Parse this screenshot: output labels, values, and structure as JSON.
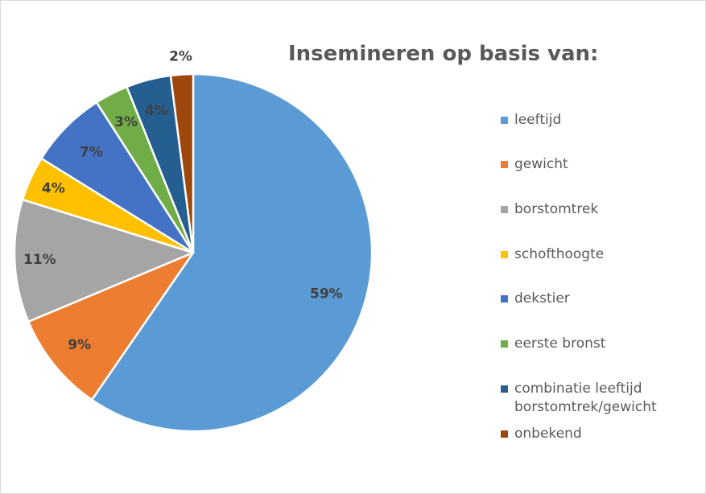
{
  "chart_data": {
    "type": "pie",
    "title": "Insemineren op basis van:",
    "categories": [
      "leeftijd",
      "gewicht",
      "borstomtrek",
      "schofthoogte",
      "dekstier",
      "eerste bronst",
      "combinatie leeftijd\nborstomtrek/gewicht",
      "onbekend"
    ],
    "values": [
      59,
      9,
      11,
      4,
      7,
      3,
      4,
      2
    ],
    "data_labels": [
      "59%",
      "9%",
      "11%",
      "4%",
      "7%",
      "3%",
      "4%",
      "2%"
    ],
    "colors": [
      "#5b9bd5",
      "#ed7d31",
      "#a5a5a5",
      "#ffc000",
      "#4472c4",
      "#70ad47",
      "#255e91",
      "#9e480e"
    ],
    "legend_position": "right"
  }
}
